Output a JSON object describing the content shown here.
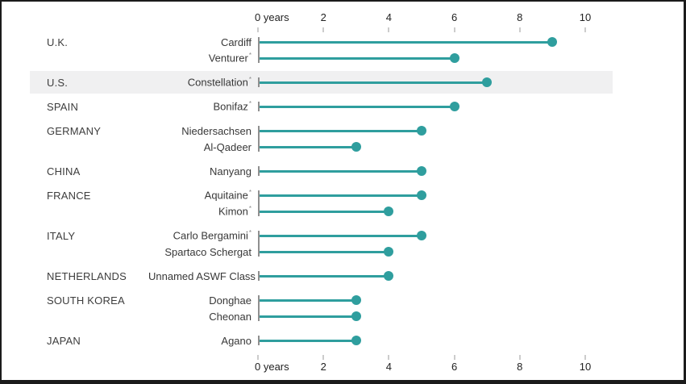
{
  "chart_data": {
    "type": "bar",
    "style": "lollipop",
    "title": "",
    "xlabel": "years",
    "ylabel": "",
    "xlim": [
      0,
      10
    ],
    "grid": false,
    "axis": {
      "tick_values": [
        0,
        2,
        4,
        6,
        8,
        10
      ],
      "tick_labels": [
        "0 years",
        "2",
        "4",
        "6",
        "8",
        "10"
      ],
      "shown": "top and bottom"
    },
    "footnote_marker": "*",
    "groups": [
      {
        "country": "U.K.",
        "highlighted": false,
        "ships": [
          {
            "name": "Cardiff",
            "footnote": false,
            "years": 9
          },
          {
            "name": "Venturer",
            "footnote": true,
            "years": 6
          }
        ]
      },
      {
        "country": "U.S.",
        "highlighted": true,
        "ships": [
          {
            "name": "Constellation",
            "footnote": true,
            "years": 7
          }
        ]
      },
      {
        "country": "SPAIN",
        "highlighted": false,
        "ships": [
          {
            "name": "Bonifaz",
            "footnote": true,
            "years": 6
          }
        ]
      },
      {
        "country": "GERMANY",
        "highlighted": false,
        "ships": [
          {
            "name": "Niedersachsen",
            "footnote": false,
            "years": 5
          },
          {
            "name": "Al-Qadeer",
            "footnote": false,
            "years": 3
          }
        ]
      },
      {
        "country": "CHINA",
        "highlighted": false,
        "ships": [
          {
            "name": "Nanyang",
            "footnote": false,
            "years": 5
          }
        ]
      },
      {
        "country": "FRANCE",
        "highlighted": false,
        "ships": [
          {
            "name": "Aquitaine",
            "footnote": true,
            "years": 5
          },
          {
            "name": "Kimon",
            "footnote": true,
            "years": 4
          }
        ]
      },
      {
        "country": "ITALY",
        "highlighted": false,
        "ships": [
          {
            "name": "Carlo Bergamini",
            "footnote": true,
            "years": 5
          },
          {
            "name": "Spartaco Schergat",
            "footnote": false,
            "years": 4
          }
        ]
      },
      {
        "country": "NETHERLANDS",
        "highlighted": false,
        "ships": [
          {
            "name": "Unnamed ASWF Class",
            "footnote": false,
            "years": 4
          }
        ]
      },
      {
        "country": "SOUTH KOREA",
        "highlighted": false,
        "ships": [
          {
            "name": "Donghae",
            "footnote": false,
            "years": 3
          },
          {
            "name": "Cheonan",
            "footnote": false,
            "years": 3
          }
        ]
      },
      {
        "country": "JAPAN",
        "highlighted": false,
        "ships": [
          {
            "name": "Agano",
            "footnote": false,
            "years": 3
          }
        ]
      }
    ],
    "colors": {
      "line": "#2f9e9e",
      "dot": "#2f9e9e",
      "highlight_band": "#f0f0f1",
      "stem": "#8f8f8f",
      "tick": "#cccccc",
      "axis_text": "#222222",
      "label_text": "#3d3d3d",
      "frame_border": "#1b1b1b"
    }
  }
}
